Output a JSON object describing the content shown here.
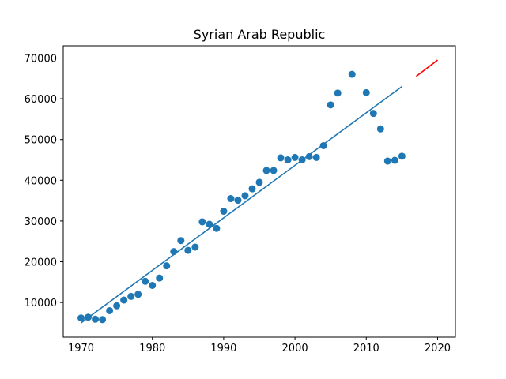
{
  "chart_data": {
    "type": "scatter",
    "title": "Syrian Arab Republic",
    "xlabel": "",
    "ylabel": "",
    "xlim": [
      1967.5,
      2022.5
    ],
    "ylim": [
      1500,
      73000
    ],
    "x_ticks": [
      1970,
      1980,
      1990,
      2000,
      2010,
      2020
    ],
    "y_ticks": [
      10000,
      20000,
      30000,
      40000,
      50000,
      60000,
      70000
    ],
    "grid": false,
    "legend": "none",
    "series": [
      {
        "kind": "scatter",
        "color": "#1f77b4",
        "x": [
          1970,
          1971,
          1972,
          1973,
          1974,
          1975,
          1976,
          1977,
          1978,
          1979,
          1980,
          1981,
          1982,
          1983,
          1984,
          1985,
          1986,
          1987,
          1988,
          1989,
          1990,
          1991,
          1992,
          1993,
          1994,
          1995,
          1996,
          1997,
          1998,
          1999,
          2000,
          2001,
          2002,
          2003,
          2004,
          2005,
          2006,
          2008,
          2010,
          2011,
          2012,
          2013,
          2014,
          2015
        ],
        "y": [
          6200,
          6400,
          5900,
          5800,
          8000,
          9200,
          10600,
          11500,
          12000,
          15200,
          14200,
          16000,
          19000,
          22500,
          25200,
          22800,
          23600,
          29800,
          29200,
          28200,
          32400,
          35500,
          35100,
          36200,
          37900,
          39500,
          42400,
          42400,
          45500,
          45000,
          45600,
          45000,
          45800,
          45600,
          48500,
          58500,
          61400,
          66000,
          61500,
          56400,
          52600,
          44700,
          44900,
          45900
        ]
      },
      {
        "kind": "line",
        "color": "#1f77b4",
        "x": [
          1970,
          2015
        ],
        "y": [
          5000,
          63000
        ]
      },
      {
        "kind": "line",
        "color": "#ff0000",
        "x": [
          2017,
          2020
        ],
        "y": [
          65500,
          69500
        ]
      }
    ]
  }
}
